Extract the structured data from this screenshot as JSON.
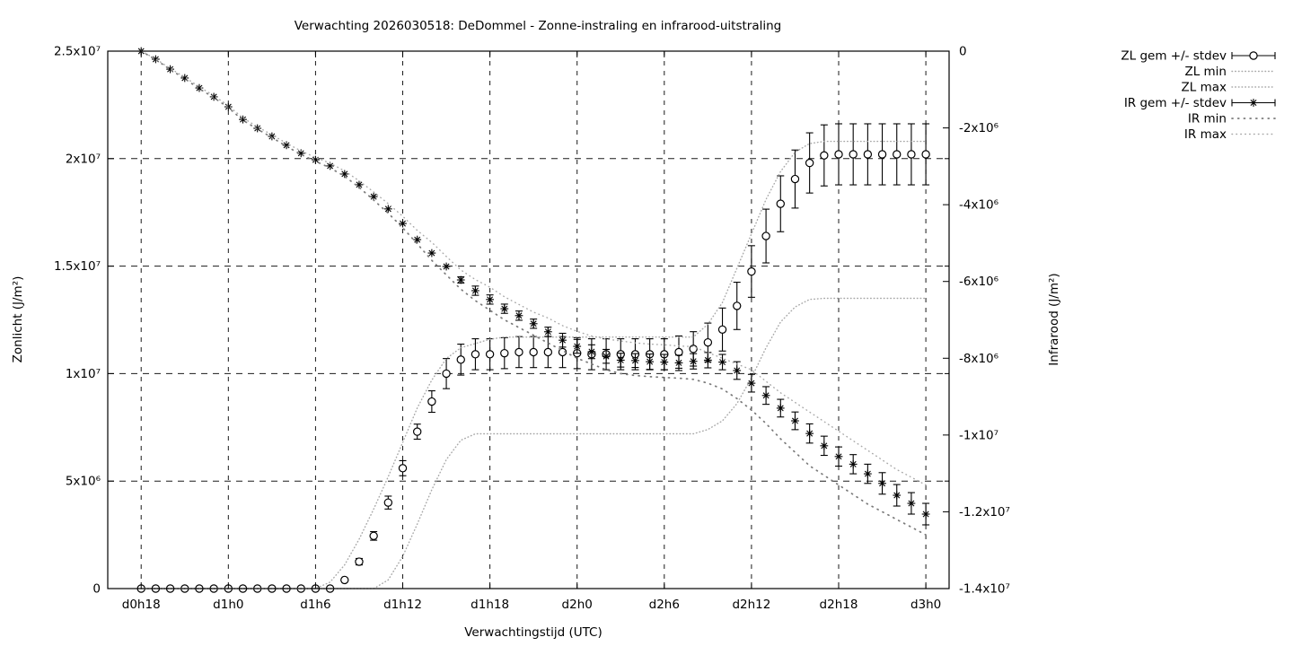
{
  "page": {
    "background": "#ffffff"
  },
  "chart_data": {
    "type": "line",
    "title": "Verwachting 2026030518: DeDommel - Zonne-instraling en infrarood-uitstraling",
    "xlabel": "Verwachtingstijd (UTC)",
    "ylabel_left": "Zonlicht (J/m²)",
    "ylabel_right": "Infrarood (J/m²)",
    "value_unit": "1e6 J/m2",
    "x_unit": "forecast hours since day0 00:00 UTC",
    "x_range_hours": [
      15.7,
      73.6
    ],
    "y_left_range_e6": [
      0,
      25
    ],
    "y_right_range_e6": [
      -14,
      0
    ],
    "grid": true,
    "legend_position": "outside-right-top",
    "colors": {
      "series": "#000000",
      "minmax_dots": "#a8a8a8",
      "ir_min_dots": "#7a7a7a",
      "grid": "#1a1a1a"
    },
    "x_ticks": [
      {
        "t": 18,
        "label": "d0h18"
      },
      {
        "t": 24,
        "label": "d1h0"
      },
      {
        "t": 30,
        "label": "d1h6"
      },
      {
        "t": 36,
        "label": "d1h12"
      },
      {
        "t": 42,
        "label": "d1h18"
      },
      {
        "t": 48,
        "label": "d2h0"
      },
      {
        "t": 54,
        "label": "d2h6"
      },
      {
        "t": 60,
        "label": "d2h12"
      },
      {
        "t": 66,
        "label": "d2h18"
      },
      {
        "t": 72,
        "label": "d3h0"
      }
    ],
    "y_left_ticks": [
      {
        "v": 0,
        "label": "0"
      },
      {
        "v": 5,
        "label": "5x10⁶"
      },
      {
        "v": 10,
        "label": "1x10⁷"
      },
      {
        "v": 15,
        "label": "1.5x10⁷"
      },
      {
        "v": 20,
        "label": "2x10⁷"
      },
      {
        "v": 25,
        "label": "2.5x10⁷"
      }
    ],
    "y_right_ticks": [
      {
        "v": 0,
        "label": "0"
      },
      {
        "v": -2,
        "label": "-2x10⁶"
      },
      {
        "v": -4,
        "label": "-4x10⁶"
      },
      {
        "v": -6,
        "label": "-6x10⁶"
      },
      {
        "v": -8,
        "label": "-8x10⁶"
      },
      {
        "v": -10,
        "label": "-1x10⁷"
      },
      {
        "v": -12,
        "label": "-1.2x10⁷"
      },
      {
        "v": -14,
        "label": "-1.4x10⁷"
      }
    ],
    "hours": [
      18,
      19,
      20,
      21,
      22,
      23,
      24,
      25,
      26,
      27,
      28,
      29,
      30,
      31,
      32,
      33,
      34,
      35,
      36,
      37,
      38,
      39,
      40,
      41,
      42,
      43,
      44,
      45,
      46,
      47,
      48,
      49,
      50,
      51,
      52,
      53,
      54,
      55,
      56,
      57,
      58,
      59,
      60,
      61,
      62,
      63,
      64,
      65,
      66,
      67,
      68,
      69,
      70,
      71,
      72
    ],
    "series": [
      {
        "name": "ZL gem +/- stdev",
        "axis": "left",
        "style": "errorbar-circle",
        "color": "#000000",
        "values": [
          0,
          0,
          0,
          0,
          0,
          0,
          0,
          0,
          0,
          0,
          0,
          0,
          0,
          0,
          0.4,
          1.25,
          2.45,
          4.0,
          5.6,
          7.3,
          8.7,
          10.0,
          10.65,
          10.9,
          10.9,
          10.95,
          11.0,
          11.0,
          11.0,
          11.0,
          10.95,
          10.9,
          10.9,
          10.9,
          10.9,
          10.9,
          10.9,
          11.0,
          11.15,
          11.45,
          12.05,
          13.15,
          14.75,
          16.4,
          17.9,
          19.05,
          19.8,
          20.15,
          20.2,
          20.2,
          20.2,
          20.2,
          20.2,
          20.2,
          20.2
        ],
        "stdev": [
          0,
          0,
          0,
          0,
          0,
          0,
          0,
          0,
          0,
          0,
          0,
          0,
          0,
          0,
          0.08,
          0.15,
          0.2,
          0.3,
          0.35,
          0.35,
          0.5,
          0.7,
          0.72,
          0.72,
          0.72,
          0.72,
          0.72,
          0.72,
          0.72,
          0.72,
          0.72,
          0.72,
          0.72,
          0.72,
          0.72,
          0.72,
          0.72,
          0.75,
          0.8,
          0.9,
          1.0,
          1.1,
          1.2,
          1.25,
          1.3,
          1.35,
          1.4,
          1.42,
          1.42,
          1.42,
          1.42,
          1.42,
          1.42,
          1.42,
          1.42
        ]
      },
      {
        "name": "ZL min",
        "axis": "left",
        "style": "dots-fine",
        "color": "#a8a8a8",
        "values": [
          0,
          0,
          0,
          0,
          0,
          0,
          0,
          0,
          0,
          0,
          0,
          0,
          0,
          0,
          0,
          0,
          0,
          0.4,
          1.5,
          3.0,
          4.6,
          6.0,
          6.9,
          7.2,
          7.2,
          7.2,
          7.2,
          7.2,
          7.2,
          7.2,
          7.2,
          7.2,
          7.2,
          7.2,
          7.2,
          7.2,
          7.2,
          7.2,
          7.2,
          7.4,
          7.8,
          8.6,
          9.8,
          11.2,
          12.4,
          13.1,
          13.45,
          13.5,
          13.5,
          13.5,
          13.5,
          13.5,
          13.5,
          13.5,
          13.5
        ]
      },
      {
        "name": "ZL max",
        "axis": "left",
        "style": "dots-fine",
        "color": "#a8a8a8",
        "values": [
          0,
          0,
          0,
          0,
          0,
          0,
          0,
          0,
          0,
          0,
          0,
          0,
          0,
          0.3,
          1.1,
          2.3,
          3.7,
          5.2,
          6.8,
          8.4,
          9.7,
          10.7,
          11.2,
          11.4,
          11.6,
          11.7,
          11.7,
          11.7,
          11.7,
          11.7,
          11.7,
          11.7,
          11.7,
          11.7,
          11.7,
          11.7,
          11.7,
          11.7,
          11.7,
          12.3,
          13.3,
          14.9,
          16.5,
          18.1,
          19.4,
          20.3,
          20.7,
          20.8,
          20.8,
          20.8,
          20.8,
          20.8,
          20.8,
          20.8,
          20.8
        ]
      },
      {
        "name": "IR gem +/- stdev",
        "axis": "right",
        "style": "errorbar-asterisk",
        "color": "#000000",
        "values": [
          0,
          -0.21,
          -0.47,
          -0.7,
          -0.96,
          -1.19,
          -1.45,
          -1.78,
          -2.01,
          -2.22,
          -2.45,
          -2.66,
          -2.83,
          -2.99,
          -3.2,
          -3.48,
          -3.79,
          -4.11,
          -4.49,
          -4.91,
          -5.26,
          -5.61,
          -5.96,
          -6.24,
          -6.47,
          -6.71,
          -6.89,
          -7.1,
          -7.31,
          -7.53,
          -7.69,
          -7.83,
          -7.95,
          -8.05,
          -8.06,
          -8.09,
          -8.1,
          -8.12,
          -8.08,
          -8.05,
          -8.1,
          -8.32,
          -8.65,
          -8.97,
          -9.3,
          -9.63,
          -9.96,
          -10.28,
          -10.56,
          -10.76,
          -11.01,
          -11.26,
          -11.57,
          -11.78,
          -12.06
        ],
        "stdev": [
          0.02,
          0.02,
          0.02,
          0.02,
          0.02,
          0.02,
          0.02,
          0.02,
          0.02,
          0.02,
          0.02,
          0.02,
          0.02,
          0.02,
          0.02,
          0.02,
          0.02,
          0.02,
          0.02,
          0.02,
          0.02,
          0.05,
          0.08,
          0.12,
          0.12,
          0.12,
          0.12,
          0.12,
          0.12,
          0.18,
          0.18,
          0.18,
          0.18,
          0.18,
          0.18,
          0.2,
          0.2,
          0.2,
          0.2,
          0.2,
          0.2,
          0.23,
          0.23,
          0.23,
          0.23,
          0.23,
          0.25,
          0.25,
          0.25,
          0.25,
          0.25,
          0.28,
          0.28,
          0.28,
          0.28
        ]
      },
      {
        "name": "IR min",
        "axis": "right",
        "style": "dots-coarse",
        "color": "#7a7a7a",
        "values": [
          0,
          -0.22,
          -0.48,
          -0.72,
          -0.98,
          -1.21,
          -1.47,
          -1.8,
          -2.03,
          -2.25,
          -2.48,
          -2.69,
          -2.87,
          -3.04,
          -3.26,
          -3.55,
          -3.88,
          -4.22,
          -4.6,
          -5.02,
          -5.45,
          -5.83,
          -6.2,
          -6.5,
          -6.75,
          -7.0,
          -7.2,
          -7.4,
          -7.6,
          -7.8,
          -8.0,
          -8.15,
          -8.3,
          -8.4,
          -8.45,
          -8.48,
          -8.5,
          -8.52,
          -8.55,
          -8.65,
          -8.8,
          -9.05,
          -9.35,
          -9.7,
          -10.1,
          -10.45,
          -10.8,
          -11.05,
          -11.3,
          -11.55,
          -11.8,
          -12.0,
          -12.2,
          -12.4,
          -12.6
        ]
      },
      {
        "name": "IR max",
        "axis": "right",
        "style": "dots-medium",
        "color": "#a8a8a8",
        "values": [
          0,
          -0.2,
          -0.45,
          -0.68,
          -0.93,
          -1.16,
          -1.42,
          -1.74,
          -1.97,
          -2.18,
          -2.4,
          -2.6,
          -2.77,
          -2.92,
          -3.12,
          -3.38,
          -3.67,
          -3.97,
          -4.3,
          -4.67,
          -4.98,
          -5.35,
          -5.7,
          -5.95,
          -6.15,
          -6.4,
          -6.6,
          -6.8,
          -6.95,
          -7.15,
          -7.3,
          -7.42,
          -7.5,
          -7.55,
          -7.6,
          -7.63,
          -7.65,
          -7.68,
          -7.7,
          -7.85,
          -8.0,
          -8.15,
          -8.3,
          -8.6,
          -8.9,
          -9.15,
          -9.4,
          -9.65,
          -9.9,
          -10.15,
          -10.4,
          -10.65,
          -10.9,
          -11.1,
          -11.3
        ]
      }
    ],
    "legend": [
      "ZL gem +/- stdev",
      "ZL min",
      "ZL max",
      "IR gem +/- stdev",
      "IR min",
      "IR max"
    ]
  }
}
